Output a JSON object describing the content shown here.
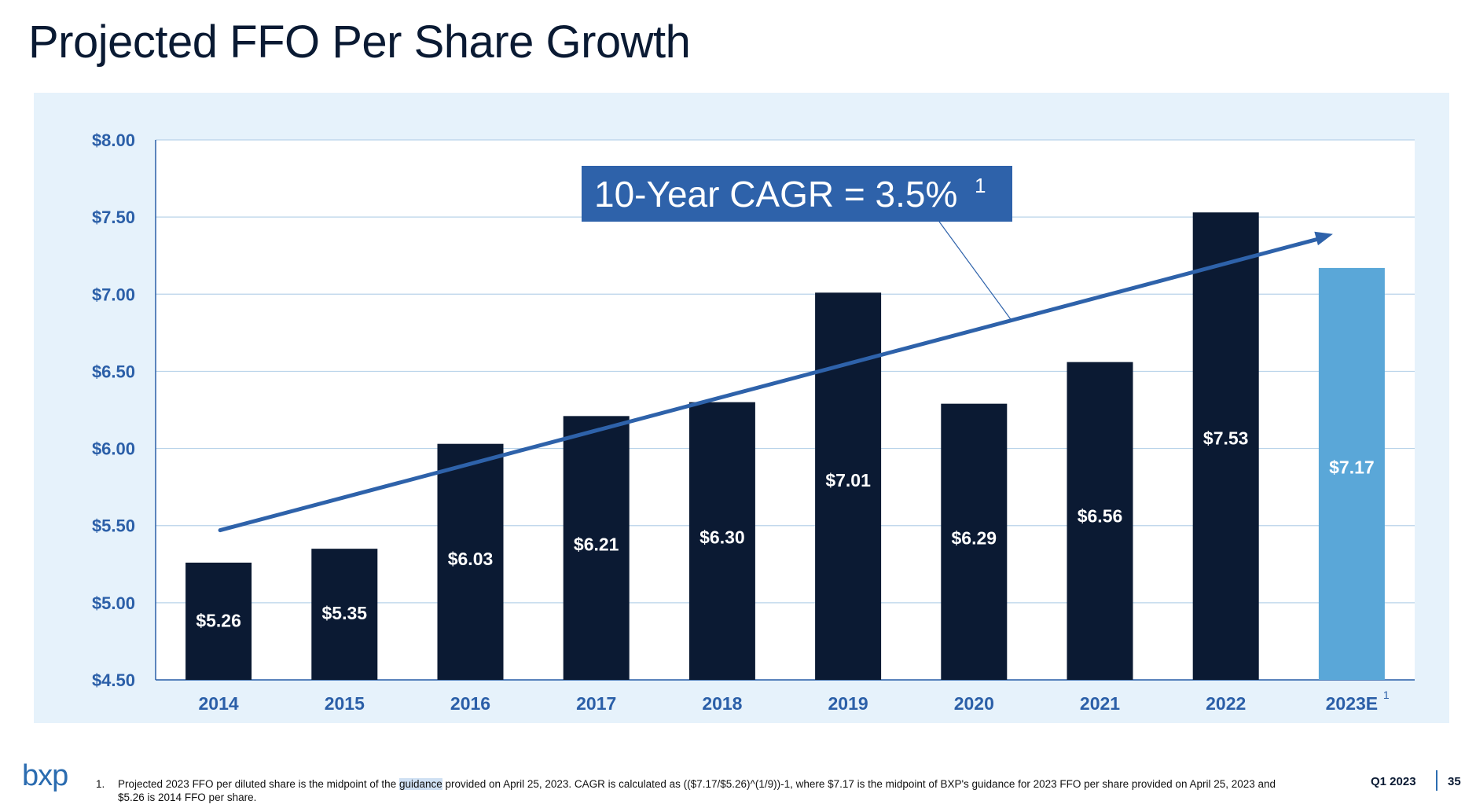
{
  "slide": {
    "title": "Projected FFO Per Share Growth",
    "logo": "bxp",
    "footnote_number": "1.",
    "footnote_pre": "Projected 2023 FFO per diluted share is the midpoint of the ",
    "footnote_highlight": "guidance",
    "footnote_post": " provided on April 25, 2023. CAGR is calculated as (($7.17/$5.26)^(1/9))-1, where $7.17 is the midpoint of BXP's guidance for 2023 FFO per share provided on April 25, 2023 and $5.26 is 2014 FFO per share.",
    "period": "Q1 2023",
    "page_number": "35"
  },
  "colors": {
    "bar_actual": "#0b1a33",
    "bar_estimate": "#5aa7d8",
    "axis_text": "#2b5fa8",
    "trend_arrow": "#2e62aa",
    "callout_bg": "#2e62aa",
    "panel_bg": "#e6f2fb"
  },
  "chart_data": {
    "type": "bar",
    "title": "",
    "categories": [
      "2014",
      "2015",
      "2016",
      "2017",
      "2018",
      "2019",
      "2020",
      "2021",
      "2022",
      "2023E"
    ],
    "category_superscripts": [
      "",
      "",
      "",
      "",
      "",
      "",
      "",
      "",
      "",
      "1"
    ],
    "values": [
      5.26,
      5.35,
      6.03,
      6.21,
      6.3,
      7.01,
      6.29,
      6.56,
      7.53,
      7.17
    ],
    "value_labels": [
      "$5.26",
      "$5.35",
      "$6.03",
      "$6.21",
      "$6.30",
      "$7.01",
      "$6.29",
      "$6.56",
      "$7.53",
      "$7.17"
    ],
    "estimated": [
      false,
      false,
      false,
      false,
      false,
      false,
      false,
      false,
      false,
      true
    ],
    "ylim": [
      4.5,
      8.0
    ],
    "yticks": [
      4.5,
      5.0,
      5.5,
      6.0,
      6.5,
      7.0,
      7.5,
      8.0
    ],
    "ytick_labels": [
      "$4.50",
      "$5.00",
      "$5.50",
      "$6.00",
      "$6.50",
      "$7.00",
      "$7.50",
      "$8.00"
    ],
    "grid": true,
    "xlabel": "",
    "ylabel": "",
    "trend_line": {
      "from": [
        "2014",
        5.47
      ],
      "to": [
        "2023E",
        7.39
      ]
    },
    "annotation": {
      "text": "10-Year CAGR = 3.5%",
      "superscript": "1"
    }
  }
}
